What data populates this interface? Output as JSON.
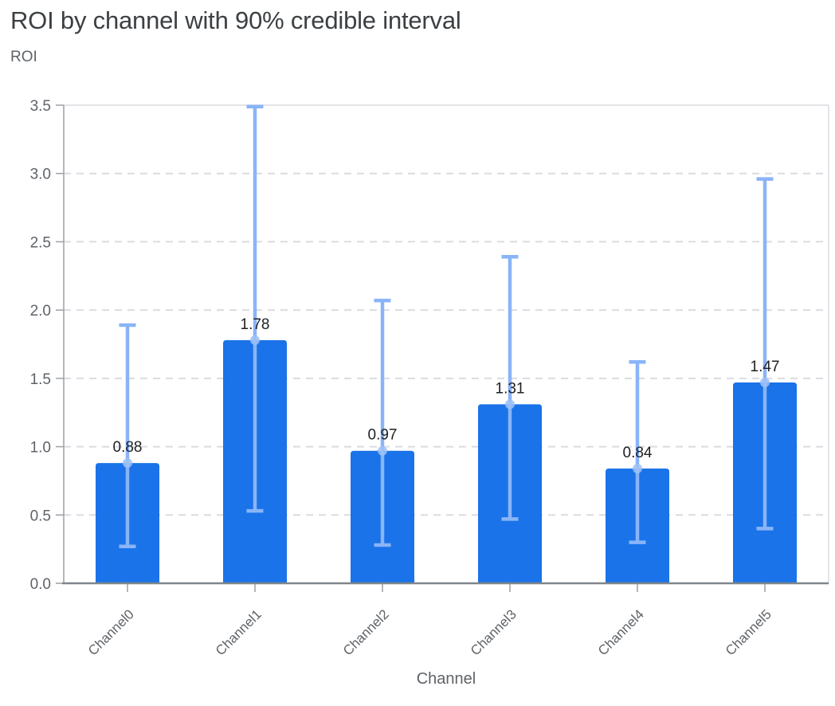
{
  "chart": {
    "title": "ROI by channel with 90% credible interval",
    "y_axis_label": "ROI",
    "x_axis_label": "Channel"
  },
  "chart_data": {
    "type": "bar",
    "title": "ROI by channel with 90% credible interval",
    "xlabel": "Channel",
    "ylabel": "ROI",
    "categories": [
      "Channel0",
      "Channel1",
      "Channel2",
      "Channel3",
      "Channel4",
      "Channel5"
    ],
    "series": [
      {
        "name": "ROI",
        "values": [
          0.88,
          1.78,
          0.97,
          1.31,
          0.84,
          1.47
        ]
      }
    ],
    "bar_value_labels": [
      "0.88",
      "1.78",
      "0.97",
      "1.31",
      "0.84",
      "1.47"
    ],
    "error_bars": {
      "label": "90% credible interval",
      "low": [
        0.27,
        0.53,
        0.28,
        0.47,
        0.3,
        0.4
      ],
      "high": [
        1.89,
        3.49,
        2.07,
        2.39,
        1.62,
        2.96
      ]
    },
    "yticks": [
      "0.0",
      "0.5",
      "1.0",
      "1.5",
      "2.0",
      "2.5",
      "3.0",
      "3.5"
    ],
    "ylim": [
      0,
      3.5
    ],
    "grid": "horizontal-dashed",
    "legend": "none",
    "colors": {
      "bar": "#1a73e8",
      "error_bar": "#8ab4f8",
      "marker": "#9ec1f7",
      "grid": "#dadce0",
      "border": "#dadce0",
      "axis_line": "#9aa0a6",
      "baseline": "#80868b",
      "title_text": "#3c4043",
      "axis_text": "#5f6368",
      "value_text": "#202124",
      "background": "#ffffff"
    }
  }
}
